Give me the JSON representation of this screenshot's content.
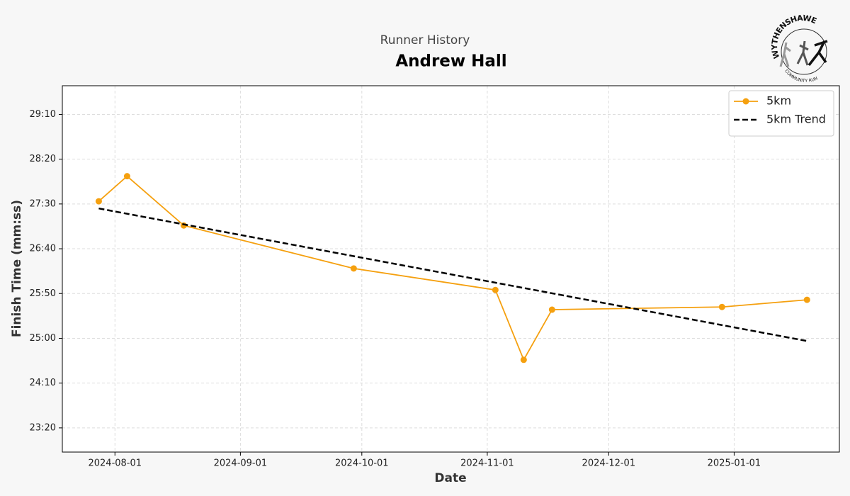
{
  "chart_data": {
    "type": "line",
    "subtitle": "Runner History",
    "title": "Andrew Hall",
    "xlabel": "Date",
    "ylabel": "Finish Time (mm:ss)",
    "logo": {
      "top_text": "WYTHENSHAWE",
      "bottom_text": "COMMUNITY RUN"
    },
    "xlim": [
      "2024-07-19",
      "2025-01-27"
    ],
    "xticks": [
      "2024-08-01",
      "2024-09-01",
      "2024-10-01",
      "2024-11-01",
      "2024-12-01",
      "2025-01-01"
    ],
    "ylim": [
      1373,
      1782
    ],
    "yticks": [
      {
        "value": 1400,
        "label": "23:20"
      },
      {
        "value": 1450,
        "label": "24:10"
      },
      {
        "value": 1500,
        "label": "25:00"
      },
      {
        "value": 1550,
        "label": "25:50"
      },
      {
        "value": 1600,
        "label": "26:40"
      },
      {
        "value": 1650,
        "label": "27:30"
      },
      {
        "value": 1700,
        "label": "28:20"
      },
      {
        "value": 1750,
        "label": "29:10"
      }
    ],
    "grid": true,
    "legend": "upper right",
    "series": [
      {
        "name": "5km",
        "color": "#f5a00f",
        "markers": true,
        "dashed": false,
        "x": [
          "2024-07-28",
          "2024-08-04",
          "2024-08-18",
          "2024-09-29",
          "2024-11-03",
          "2024-11-10",
          "2024-11-17",
          "2024-12-29",
          "2025-01-19"
        ],
        "values": [
          1653,
          1681,
          1626,
          1578,
          1554,
          1476,
          1532,
          1535,
          1543
        ]
      },
      {
        "name": "5km Trend",
        "color": "#000000",
        "markers": false,
        "dashed": true,
        "x": [
          "2024-07-28",
          "2025-01-19"
        ],
        "values": [
          1645,
          1497
        ]
      }
    ]
  }
}
